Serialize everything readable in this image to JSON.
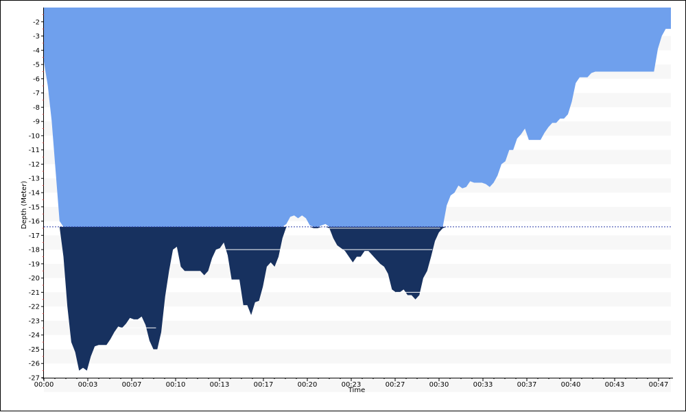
{
  "chart_data": {
    "type": "area",
    "xlabel": "Time",
    "ylabel": "Depth (Meter)",
    "x_ticks": [
      "00:00",
      "00:03",
      "00:07",
      "00:10",
      "00:13",
      "00:17",
      "00:20",
      "00:23",
      "00:27",
      "00:30",
      "00:33",
      "00:37",
      "00:40",
      "00:43",
      "00:47"
    ],
    "y_ticks": [
      -2,
      -3,
      -4,
      -5,
      -6,
      -7,
      -8,
      -9,
      -10,
      -11,
      -12,
      -13,
      -14,
      -15,
      -16,
      -17,
      -18,
      -19,
      -20,
      -21,
      -22,
      -23,
      -24,
      -25,
      -26,
      -27
    ],
    "xlim_minutes": [
      0,
      48.1
    ],
    "ylim": [
      -27,
      -1
    ],
    "threshold_depth": -16.4,
    "colors": {
      "above_fill": "#6fa0ed",
      "below_fill": "#17315f",
      "stripe": "#f7f7f7",
      "threshold_line": "#2a3aa8"
    },
    "series": [
      {
        "values": [
          [
            0,
            -4.8
          ],
          [
            0.3,
            -6.5
          ],
          [
            0.6,
            -9.0
          ],
          [
            0.9,
            -12.5
          ],
          [
            1.2,
            -16.0
          ],
          [
            1.5,
            -18.5
          ],
          [
            1.8,
            -22.0
          ],
          [
            2.1,
            -24.5
          ],
          [
            2.4,
            -25.2
          ],
          [
            2.7,
            -26.5
          ],
          [
            3.0,
            -26.3
          ],
          [
            3.3,
            -26.5
          ],
          [
            3.6,
            -25.5
          ],
          [
            3.9,
            -24.8
          ],
          [
            4.2,
            -24.7
          ],
          [
            4.5,
            -24.7
          ],
          [
            4.8,
            -24.7
          ],
          [
            5.1,
            -24.3
          ],
          [
            5.4,
            -23.8
          ],
          [
            5.7,
            -23.4
          ],
          [
            6.0,
            -23.5
          ],
          [
            6.3,
            -23.2
          ],
          [
            6.6,
            -22.8
          ],
          [
            6.9,
            -22.9
          ],
          [
            7.2,
            -22.9
          ],
          [
            7.5,
            -22.7
          ],
          [
            7.8,
            -23.3
          ],
          [
            8.1,
            -24.4
          ],
          [
            8.4,
            -25.0
          ],
          [
            8.7,
            -25.0
          ],
          [
            9.0,
            -23.8
          ],
          [
            9.3,
            -21.3
          ],
          [
            9.6,
            -19.5
          ],
          [
            9.9,
            -18.0
          ],
          [
            10.2,
            -17.8
          ],
          [
            10.5,
            -19.2
          ],
          [
            10.8,
            -19.5
          ],
          [
            11.1,
            -19.5
          ],
          [
            11.4,
            -19.5
          ],
          [
            11.7,
            -19.5
          ],
          [
            12.0,
            -19.5
          ],
          [
            12.3,
            -19.8
          ],
          [
            12.6,
            -19.5
          ],
          [
            12.9,
            -18.6
          ],
          [
            13.2,
            -18.0
          ],
          [
            13.5,
            -17.9
          ],
          [
            13.8,
            -17.5
          ],
          [
            14.1,
            -18.4
          ],
          [
            14.4,
            -20.1
          ],
          [
            14.7,
            -20.1
          ],
          [
            15.0,
            -20.1
          ],
          [
            15.3,
            -21.9
          ],
          [
            15.6,
            -21.9
          ],
          [
            15.9,
            -22.6
          ],
          [
            16.2,
            -21.7
          ],
          [
            16.5,
            -21.6
          ],
          [
            16.8,
            -20.6
          ],
          [
            17.1,
            -19.2
          ],
          [
            17.4,
            -18.9
          ],
          [
            17.7,
            -19.2
          ],
          [
            18.0,
            -18.5
          ],
          [
            18.3,
            -17.2
          ],
          [
            18.6,
            -16.2
          ],
          [
            18.9,
            -15.7
          ],
          [
            19.2,
            -15.6
          ],
          [
            19.5,
            -15.8
          ],
          [
            19.8,
            -15.6
          ],
          [
            20.1,
            -15.8
          ],
          [
            20.4,
            -16.3
          ],
          [
            20.7,
            -16.5
          ],
          [
            21.0,
            -16.5
          ],
          [
            21.3,
            -16.3
          ],
          [
            21.6,
            -16.2
          ],
          [
            21.9,
            -16.5
          ],
          [
            22.2,
            -17.2
          ],
          [
            22.5,
            -17.7
          ],
          [
            22.8,
            -17.9
          ],
          [
            23.1,
            -18.1
          ],
          [
            23.4,
            -18.5
          ],
          [
            23.7,
            -18.9
          ],
          [
            24.0,
            -18.5
          ],
          [
            24.3,
            -18.5
          ],
          [
            24.6,
            -18.1
          ],
          [
            24.9,
            -18.1
          ],
          [
            25.2,
            -18.4
          ],
          [
            25.5,
            -18.7
          ],
          [
            25.8,
            -19.0
          ],
          [
            26.1,
            -19.2
          ],
          [
            26.4,
            -19.7
          ],
          [
            26.7,
            -20.8
          ],
          [
            27.0,
            -21.0
          ],
          [
            27.3,
            -21.0
          ],
          [
            27.6,
            -20.8
          ],
          [
            27.9,
            -21.2
          ],
          [
            28.2,
            -21.2
          ],
          [
            28.5,
            -21.5
          ],
          [
            28.8,
            -21.2
          ],
          [
            29.1,
            -20.0
          ],
          [
            29.4,
            -19.5
          ],
          [
            29.7,
            -18.5
          ],
          [
            30.0,
            -17.4
          ],
          [
            30.3,
            -16.8
          ],
          [
            30.6,
            -16.5
          ],
          [
            30.9,
            -14.9
          ],
          [
            31.2,
            -14.2
          ],
          [
            31.5,
            -14.0
          ],
          [
            31.8,
            -13.5
          ],
          [
            32.1,
            -13.7
          ],
          [
            32.4,
            -13.6
          ],
          [
            32.7,
            -13.2
          ],
          [
            33.0,
            -13.3
          ],
          [
            33.3,
            -13.3
          ],
          [
            33.6,
            -13.3
          ],
          [
            33.9,
            -13.4
          ],
          [
            34.2,
            -13.6
          ],
          [
            34.5,
            -13.3
          ],
          [
            34.8,
            -12.8
          ],
          [
            35.1,
            -12.0
          ],
          [
            35.4,
            -11.8
          ],
          [
            35.7,
            -11.0
          ],
          [
            36.0,
            -11.0
          ],
          [
            36.3,
            -10.2
          ],
          [
            36.6,
            -9.9
          ],
          [
            36.9,
            -9.5
          ],
          [
            37.2,
            -10.3
          ],
          [
            37.5,
            -10.3
          ],
          [
            37.8,
            -10.3
          ],
          [
            38.1,
            -10.3
          ],
          [
            38.4,
            -9.8
          ],
          [
            38.7,
            -9.4
          ],
          [
            39.0,
            -9.1
          ],
          [
            39.3,
            -9.1
          ],
          [
            39.6,
            -8.8
          ],
          [
            39.9,
            -8.8
          ],
          [
            40.2,
            -8.5
          ],
          [
            40.5,
            -7.6
          ],
          [
            40.8,
            -6.3
          ],
          [
            41.1,
            -5.9
          ],
          [
            41.4,
            -5.9
          ],
          [
            41.7,
            -5.9
          ],
          [
            42.0,
            -5.6
          ],
          [
            42.3,
            -5.5
          ],
          [
            42.6,
            -5.5
          ],
          [
            42.9,
            -5.5
          ],
          [
            43.2,
            -5.5
          ],
          [
            43.5,
            -5.5
          ],
          [
            43.8,
            -5.5
          ],
          [
            44.1,
            -5.5
          ],
          [
            44.4,
            -5.5
          ],
          [
            44.7,
            -5.5
          ],
          [
            45.0,
            -5.5
          ],
          [
            45.3,
            -5.5
          ],
          [
            45.6,
            -5.5
          ],
          [
            45.9,
            -5.5
          ],
          [
            46.2,
            -5.5
          ],
          [
            46.5,
            -5.5
          ],
          [
            46.8,
            -5.5
          ],
          [
            47.1,
            -3.9
          ],
          [
            47.4,
            -3.0
          ],
          [
            47.7,
            -2.5
          ]
        ]
      }
    ]
  }
}
